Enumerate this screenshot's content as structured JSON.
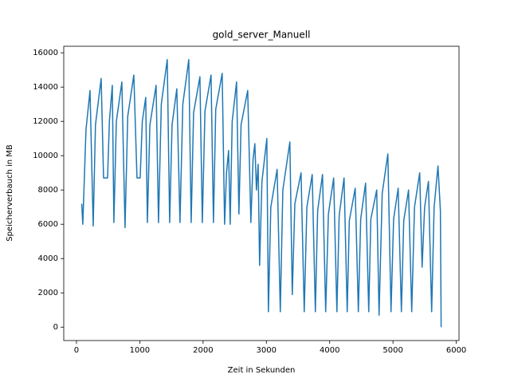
{
  "chart_data": {
    "type": "line",
    "title": "gold_server_Manuell",
    "x_label": "Zeit in Sekunden",
    "y_label": "Speicherverbauch in MB",
    "xlim": [
      -201,
      6043
    ],
    "ylim": [
      -780,
      16380
    ],
    "xticks": [
      0,
      1000,
      2000,
      3000,
      4000,
      5000,
      6000
    ],
    "yticks": [
      0,
      2000,
      4000,
      6000,
      8000,
      10000,
      12000,
      14000,
      16000
    ],
    "x": [
      83,
      100,
      150,
      214,
      264,
      300,
      390,
      428,
      491,
      520,
      566,
      591,
      630,
      717,
      767,
      810,
      906,
      956,
      1006,
      1040,
      1094,
      1120,
      1160,
      1258,
      1296,
      1340,
      1434,
      1472,
      1510,
      1585,
      1635,
      1680,
      1774,
      1812,
      1850,
      1950,
      1988,
      2030,
      2126,
      2164,
      2200,
      2302,
      2340,
      2370,
      2403,
      2428,
      2460,
      2529,
      2566,
      2600,
      2705,
      2755,
      2790,
      2818,
      2843,
      2870,
      2893,
      2930,
      3007,
      3032,
      3070,
      3170,
      3220,
      3260,
      3371,
      3409,
      3450,
      3548,
      3598,
      3640,
      3724,
      3774,
      3810,
      3887,
      3937,
      3980,
      4063,
      4114,
      4150,
      4227,
      4277,
      4310,
      4403,
      4453,
      4490,
      4567,
      4617,
      4650,
      4743,
      4780,
      4830,
      4919,
      4969,
      5010,
      5082,
      5133,
      5170,
      5246,
      5296,
      5340,
      5422,
      5460,
      5500,
      5560,
      5611,
      5650,
      5711,
      5749,
      5761
    ],
    "series": [
      {
        "color": "#1f77b4",
        "values": [
          7200,
          6000,
          11500,
          13800,
          5900,
          11800,
          14500,
          8700,
          8700,
          12000,
          14100,
          6100,
          12000,
          14300,
          5800,
          12300,
          14700,
          8700,
          8700,
          12000,
          13400,
          6100,
          11800,
          14100,
          6100,
          13000,
          15600,
          6100,
          11800,
          13900,
          6100,
          13000,
          15600,
          6100,
          12500,
          14600,
          6100,
          12600,
          14700,
          6100,
          12700,
          14800,
          6000,
          9000,
          10300,
          6000,
          12000,
          14300,
          6600,
          11800,
          13800,
          6100,
          9800,
          10700,
          8000,
          9500,
          3600,
          8500,
          11000,
          900,
          7000,
          9200,
          900,
          8000,
          10800,
          1900,
          7200,
          9000,
          900,
          7000,
          8900,
          900,
          6800,
          8900,
          900,
          6600,
          8700,
          900,
          6500,
          8700,
          900,
          6200,
          8100,
          900,
          6300,
          8400,
          900,
          6300,
          8000,
          700,
          7800,
          10100,
          900,
          6300,
          8100,
          900,
          6200,
          8000,
          900,
          7000,
          9000,
          3500,
          7000,
          8500,
          900,
          7000,
          9400,
          6800,
          0
        ]
      }
    ]
  }
}
